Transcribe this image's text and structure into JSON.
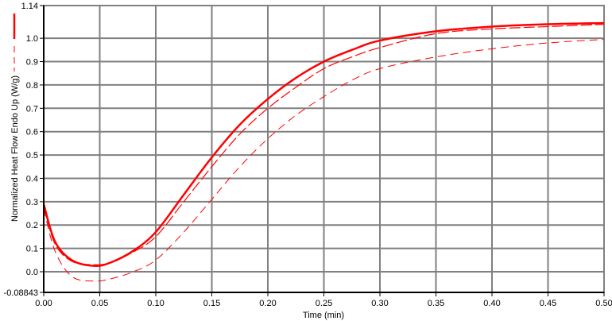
{
  "chart_data": {
    "type": "line",
    "title": "",
    "xlabel": "Time (min)",
    "ylabel": "Normalized Heat Flow Endo Up (W/g)",
    "xlim": [
      0.0,
      0.5
    ],
    "ylim": [
      -0.08843,
      1.14
    ],
    "grid": true,
    "x_ticks": [
      "0.00",
      "0.05",
      "0.10",
      "0.15",
      "0.20",
      "0.25",
      "0.30",
      "0.35",
      "0.40",
      "0.45",
      "0.50"
    ],
    "y_ticks": [
      "-0.08843",
      "0.0",
      "0.1",
      "0.2",
      "0.3",
      "0.4",
      "0.5",
      "0.6",
      "0.7",
      "0.8",
      "0.9",
      "1.0",
      "1.14"
    ],
    "legend_placement": "left",
    "colors": {
      "series": "#ff0000",
      "grid": "#808080",
      "axis": "#000000"
    },
    "series": [
      {
        "style": "solid",
        "x": [
          0,
          0.01,
          0.025,
          0.045,
          0.06,
          0.08,
          0.1,
          0.125,
          0.15,
          0.175,
          0.2,
          0.225,
          0.25,
          0.275,
          0.3,
          0.35,
          0.4,
          0.45,
          0.5
        ],
        "y": [
          0.29,
          0.13,
          0.05,
          0.025,
          0.04,
          0.09,
          0.17,
          0.33,
          0.49,
          0.63,
          0.74,
          0.83,
          0.9,
          0.95,
          0.99,
          1.03,
          1.05,
          1.06,
          1.065
        ]
      },
      {
        "style": "long-dash",
        "x": [
          0,
          0.01,
          0.025,
          0.045,
          0.06,
          0.08,
          0.1,
          0.125,
          0.15,
          0.175,
          0.2,
          0.225,
          0.25,
          0.275,
          0.3,
          0.35,
          0.4,
          0.45,
          0.5
        ],
        "y": [
          0.28,
          0.12,
          0.045,
          0.03,
          0.04,
          0.085,
          0.15,
          0.3,
          0.45,
          0.59,
          0.7,
          0.79,
          0.87,
          0.92,
          0.96,
          1.02,
          1.04,
          1.05,
          1.06
        ]
      },
      {
        "style": "short-dash",
        "x": [
          0,
          0.01,
          0.025,
          0.045,
          0.06,
          0.08,
          0.1,
          0.125,
          0.15,
          0.175,
          0.2,
          0.225,
          0.25,
          0.275,
          0.3,
          0.35,
          0.4,
          0.45,
          0.5
        ],
        "y": [
          0.27,
          0.09,
          -0.02,
          -0.04,
          -0.03,
          0.0,
          0.05,
          0.17,
          0.31,
          0.45,
          0.57,
          0.67,
          0.75,
          0.82,
          0.87,
          0.92,
          0.955,
          0.98,
          0.995
        ]
      }
    ]
  }
}
